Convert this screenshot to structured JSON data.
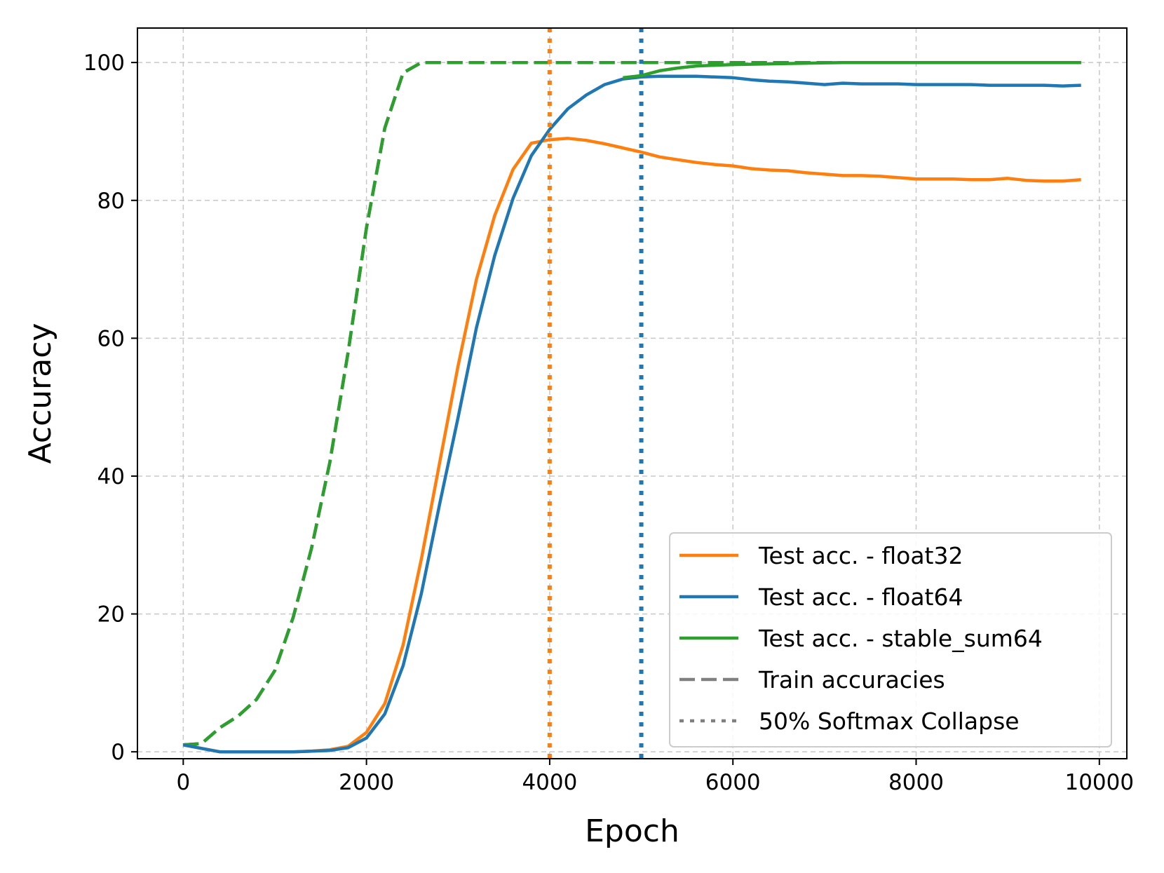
{
  "chart_data": {
    "type": "line",
    "xlabel": "Epoch",
    "ylabel": "Accuracy",
    "xlim": [
      -500,
      10300
    ],
    "ylim": [
      -1,
      105
    ],
    "xticks": [
      0,
      2000,
      4000,
      6000,
      8000,
      10000
    ],
    "yticks": [
      0,
      20,
      40,
      60,
      80,
      100
    ],
    "grid": true,
    "legend_position": "lower-right",
    "legend": [
      {
        "label": "Test acc. - float32",
        "color": "#ff7f0e",
        "style": "solid"
      },
      {
        "label": "Test acc. - float64",
        "color": "#1f77b4",
        "style": "solid"
      },
      {
        "label": "Test acc. - stable_sum64",
        "color": "#2ca02c",
        "style": "solid"
      },
      {
        "label": "Train accuracies",
        "color": "#808080",
        "style": "dashed"
      },
      {
        "label": "50% Softmax Collapse",
        "color": "#808080",
        "style": "dotted"
      }
    ],
    "series": [
      {
        "id": "train_float32",
        "color": "#ff7f0e",
        "style": "dashed",
        "x": [
          0,
          200,
          400,
          600,
          800,
          1000,
          1200,
          1400,
          1600,
          1800,
          2000,
          2200,
          2400,
          2600,
          2800,
          3000,
          4000,
          5000,
          6000,
          7000,
          8000,
          9000,
          9800
        ],
        "y": [
          1,
          1.2,
          3.5,
          5.2,
          7.6,
          11.8,
          19.5,
          29.5,
          42,
          58,
          76,
          90.5,
          98.5,
          100,
          100,
          100,
          100,
          100,
          100,
          100,
          100,
          100,
          100
        ]
      },
      {
        "id": "train_float64",
        "color": "#1f77b4",
        "style": "dashed",
        "x": [
          0,
          200,
          400,
          600,
          800,
          1000,
          1200,
          1400,
          1600,
          1800,
          2000,
          2200,
          2400,
          2600,
          2800,
          3000,
          4000,
          5000,
          6000,
          7000,
          8000,
          9000,
          9800
        ],
        "y": [
          1,
          1.2,
          3.5,
          5.2,
          7.6,
          11.8,
          19.5,
          29.5,
          42,
          58,
          76,
          90.5,
          98.5,
          100,
          100,
          100,
          100,
          100,
          100,
          100,
          100,
          100,
          100
        ]
      },
      {
        "id": "train_stable_sum64",
        "color": "#2ca02c",
        "style": "dashed",
        "x": [
          0,
          200,
          400,
          600,
          800,
          1000,
          1200,
          1400,
          1600,
          1800,
          2000,
          2200,
          2400,
          2600,
          2800,
          3000,
          4000,
          5000,
          6000,
          7000,
          8000,
          9000,
          9800
        ],
        "y": [
          1,
          1.2,
          3.5,
          5.2,
          7.6,
          11.8,
          19.5,
          29.5,
          42,
          58,
          76,
          90.5,
          98.5,
          100,
          100,
          100,
          100,
          100,
          100,
          100,
          100,
          100,
          100
        ]
      },
      {
        "id": "test_float32",
        "name": "Test acc. - float32",
        "color": "#ff7f0e",
        "style": "solid",
        "x": [
          0,
          200,
          400,
          600,
          800,
          1000,
          1200,
          1400,
          1600,
          1800,
          2000,
          2200,
          2400,
          2600,
          2800,
          3000,
          3200,
          3400,
          3600,
          3800,
          4000,
          4200,
          4400,
          4600,
          4800,
          5000,
          5200,
          5400,
          5600,
          5800,
          6000,
          6200,
          6400,
          6600,
          6800,
          7000,
          7200,
          7400,
          7600,
          7800,
          8000,
          8200,
          8400,
          8600,
          8800,
          9000,
          9200,
          9400,
          9600,
          9800
        ],
        "y": [
          1,
          0.5,
          0,
          0,
          0,
          0,
          0,
          0.1,
          0.3,
          0.8,
          2.8,
          7,
          15.5,
          28,
          42,
          56,
          68.5,
          77.8,
          84.5,
          88.3,
          88.8,
          89,
          88.7,
          88.2,
          87.6,
          87,
          86.3,
          85.9,
          85.5,
          85.2,
          85,
          84.6,
          84.4,
          84.3,
          84,
          83.8,
          83.6,
          83.6,
          83.5,
          83.3,
          83.1,
          83.1,
          83.1,
          83,
          83,
          83.2,
          82.9,
          82.8,
          82.8,
          83
        ]
      },
      {
        "id": "test_float64",
        "name": "Test acc. - float64",
        "color": "#1f77b4",
        "style": "solid",
        "x": [
          0,
          200,
          400,
          600,
          800,
          1000,
          1200,
          1400,
          1600,
          1800,
          2000,
          2200,
          2400,
          2600,
          2800,
          3000,
          3200,
          3400,
          3600,
          3800,
          4000,
          4200,
          4400,
          4600,
          4800,
          5000,
          5200,
          5400,
          5600,
          5800,
          6000,
          6200,
          6400,
          6600,
          6800,
          7000,
          7200,
          7400,
          7600,
          7800,
          8000,
          8200,
          8400,
          8600,
          8800,
          9000,
          9200,
          9400,
          9600,
          9800
        ],
        "y": [
          1,
          0.5,
          0,
          0,
          0,
          0,
          0,
          0.1,
          0.2,
          0.6,
          2,
          5.5,
          12.5,
          23,
          36,
          48.5,
          61.5,
          72,
          80.3,
          86.5,
          90.3,
          93.3,
          95.3,
          96.8,
          97.6,
          97.9,
          98,
          98,
          98,
          97.9,
          97.8,
          97.5,
          97.3,
          97.2,
          97,
          96.8,
          97,
          96.9,
          96.9,
          96.9,
          96.8,
          96.8,
          96.8,
          96.8,
          96.7,
          96.7,
          96.7,
          96.7,
          96.6,
          96.7
        ]
      },
      {
        "id": "test_stable_sum64",
        "name": "Test acc. - stable_sum64",
        "color": "#2ca02c",
        "style": "solid",
        "x": [
          4800,
          5000,
          5200,
          5400,
          5600,
          5800,
          6000,
          6200,
          6400,
          6600,
          6800,
          7000,
          7200,
          7400,
          7600,
          7800,
          8000,
          8500,
          9000,
          9500,
          9800
        ],
        "y": [
          97.8,
          98.1,
          98.8,
          99.2,
          99.5,
          99.6,
          99.7,
          99.75,
          99.8,
          99.85,
          99.9,
          99.95,
          100,
          100,
          100,
          100,
          100,
          100,
          100,
          100,
          100
        ]
      }
    ],
    "vlines": [
      {
        "id": "collapse_float32",
        "x": 4000,
        "color": "#ff7f0e",
        "style": "dotted"
      },
      {
        "id": "collapse_float64",
        "x": 5000,
        "color": "#1f77b4",
        "style": "dotted"
      }
    ]
  }
}
